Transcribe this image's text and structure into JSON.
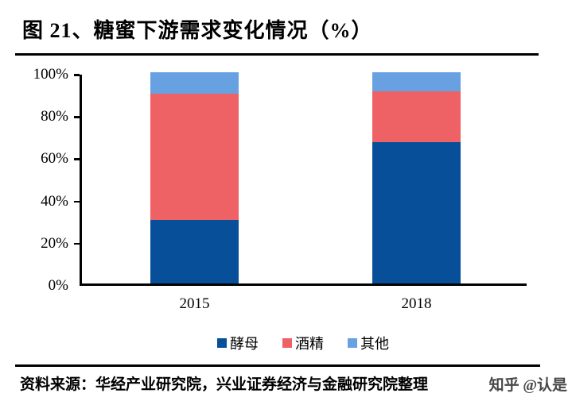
{
  "title": "图 21、糖蜜下游需求变化情况（%）",
  "footer": {
    "source_text": "资料来源：华经产业研究院，兴业证券经济与金融研究院整理",
    "watermark": "知乎 @认是"
  },
  "colors": {
    "yeast_blue": "#084F9A",
    "alcohol_red": "#EE6164",
    "other_blue": "#68A1E2",
    "axis": "#000000"
  },
  "chart_data": {
    "type": "bar",
    "stacked": true,
    "title": "糖蜜下游需求变化情况（%）",
    "categories": [
      "2015",
      "2018"
    ],
    "series": [
      {
        "name": "酵母",
        "color": "#084F9A",
        "values": [
          30,
          67
        ]
      },
      {
        "name": "酒精",
        "color": "#EE6164",
        "values": [
          60,
          24
        ]
      },
      {
        "name": "其他",
        "color": "#68A1E2",
        "values": [
          10,
          9
        ]
      }
    ],
    "xlabel": "",
    "ylabel": "",
    "ylim": [
      0,
      100
    ],
    "y_ticks": [
      "0%",
      "20%",
      "40%",
      "60%",
      "80%",
      "100%"
    ],
    "grid": false,
    "legend_position": "bottom"
  }
}
